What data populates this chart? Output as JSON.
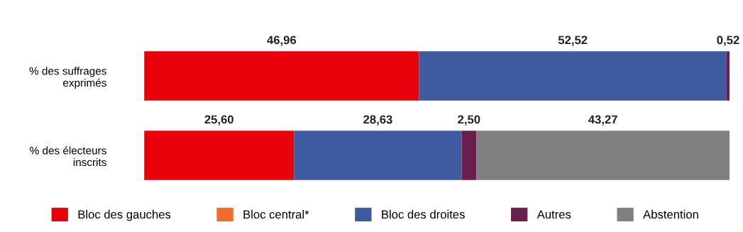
{
  "chart_data": {
    "type": "bar",
    "orientation": "horizontal",
    "stacked": true,
    "categories": [
      "% des suffrages\nexprimés",
      "% des électeurs\ninscrits"
    ],
    "series": [
      {
        "name": "Bloc des gauches",
        "color": "#e8000b",
        "values": [
          46.96,
          25.6
        ],
        "value_labels": [
          "46,96",
          "25,60"
        ]
      },
      {
        "name": "Bloc central*",
        "color": "#f26b2b",
        "values": [
          null,
          null
        ]
      },
      {
        "name": "Bloc des droites",
        "color": "#3f5ba0",
        "values": [
          52.52,
          28.63
        ],
        "value_labels": [
          "52,52",
          "28,63"
        ]
      },
      {
        "name": "Autres",
        "color": "#6b1f4f",
        "values": [
          0.52,
          2.5
        ],
        "value_labels": [
          "0,52",
          "2,50"
        ]
      },
      {
        "name": "Abstention",
        "color": "#808080",
        "values": [
          null,
          43.27
        ],
        "value_labels": [
          null,
          "43,27"
        ]
      }
    ],
    "legend": "bottom",
    "grid": false
  }
}
